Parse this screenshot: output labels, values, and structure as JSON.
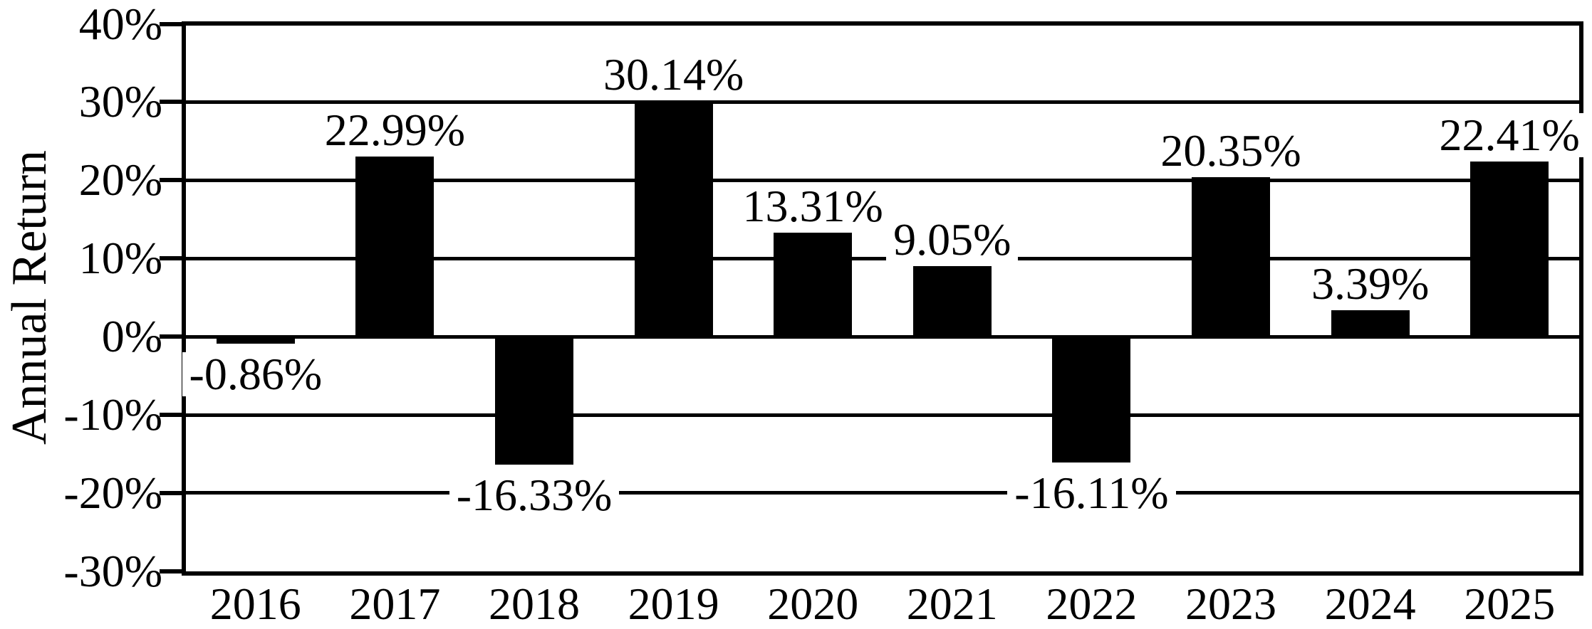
{
  "chart_data": {
    "type": "bar",
    "title": "",
    "xlabel": "",
    "ylabel": "Annual Return",
    "categories": [
      "2016",
      "2017",
      "2018",
      "2019",
      "2020",
      "2021",
      "2022",
      "2023",
      "2024",
      "2025"
    ],
    "values": [
      -0.86,
      22.99,
      -16.33,
      30.14,
      13.31,
      9.05,
      -16.11,
      20.35,
      3.39,
      22.41
    ],
    "bar_labels": [
      "-0.86%",
      "22.99%",
      "-16.33%",
      "30.14%",
      "13.31%",
      "9.05%",
      "-16.11%",
      "20.35%",
      "3.39%",
      "22.41%"
    ],
    "yticks": [
      {
        "value": 40,
        "label": "40%"
      },
      {
        "value": 30,
        "label": "30%"
      },
      {
        "value": 20,
        "label": "20%"
      },
      {
        "value": 10,
        "label": "10%"
      },
      {
        "value": 0,
        "label": "0%"
      },
      {
        "value": -10,
        "label": "-10%"
      },
      {
        "value": -20,
        "label": "-20%"
      },
      {
        "value": -30,
        "label": "-30%"
      }
    ],
    "ylim": [
      -30,
      40
    ],
    "grid": true,
    "legend": false,
    "bar_color": "#000000",
    "background_color": "#ffffff",
    "text_color": "#000000",
    "frame_color": "#000000"
  }
}
